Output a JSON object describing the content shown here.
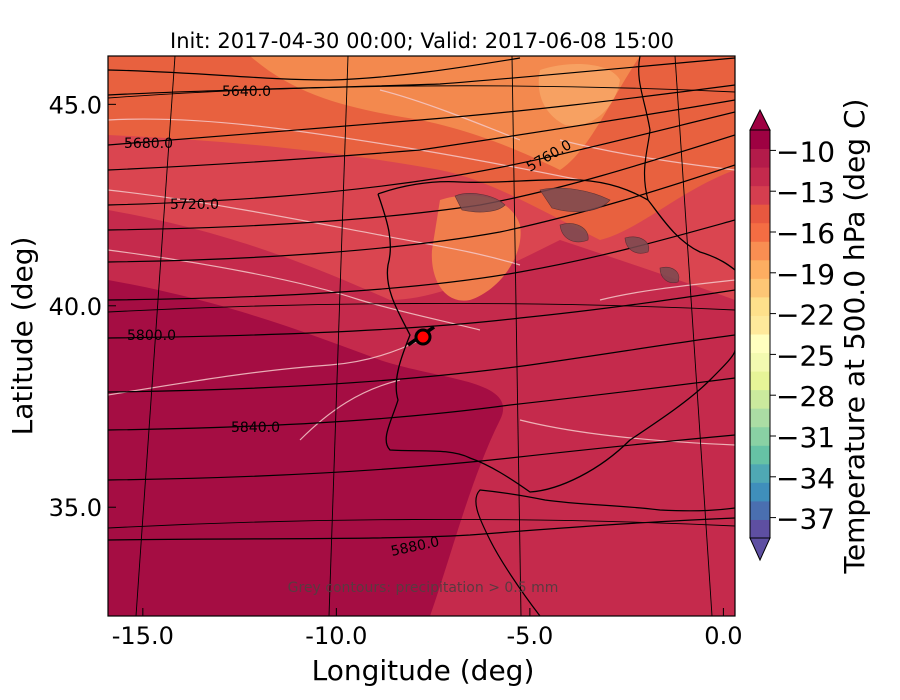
{
  "title": "Init: 2017-04-30 00:00; Valid: 2017-06-08 15:00",
  "xlabel": "Longitude (deg)",
  "ylabel": "Latitude (deg)",
  "x_ticks": [
    "-15.0",
    "-10.0",
    "-5.0",
    "0.0"
  ],
  "y_ticks": [
    "45.0",
    "40.0",
    "35.0"
  ],
  "x_tick_values": [
    -15,
    -10,
    -5,
    0
  ],
  "y_tick_values": [
    45,
    40,
    35
  ],
  "xlim": [
    -15.9,
    0.3
  ],
  "ylim": [
    32.3,
    46.2
  ],
  "annotation": "Grey contours: precipitation > 0.5 mm",
  "colorbar": {
    "label": "Temperature at 500.0 hPa (deg C)",
    "ticks": [
      "−10",
      "−13",
      "−16",
      "−19",
      "−22",
      "−25",
      "−28",
      "−31",
      "−34",
      "−37"
    ],
    "tick_values": [
      -10,
      -13,
      -16,
      -19,
      -22,
      -25,
      -28,
      -31,
      -34,
      -37
    ],
    "range": [
      -38.5,
      -8.5
    ],
    "extend": "both",
    "colors": [
      "#5e4fa2",
      "#4a6fb0",
      "#3f8fbb",
      "#4fa8b4",
      "#66c2a5",
      "#89d1a4",
      "#abdda4",
      "#cbea9d",
      "#e6f598",
      "#f3fab0",
      "#ffffbf",
      "#fee99b",
      "#fee08b",
      "#fdc675",
      "#fdae61",
      "#f98e52",
      "#f46d43",
      "#e8583f",
      "#d53e4f",
      "#c42a4d",
      "#b31b4a",
      "#9e0142"
    ]
  },
  "contour_labels": [
    {
      "text": "5640.0"
    },
    {
      "text": "5680.0"
    },
    {
      "text": "5720.0"
    },
    {
      "text": "5760.0"
    },
    {
      "text": "5800.0"
    },
    {
      "text": "5840.0"
    },
    {
      "text": "5880.0"
    }
  ],
  "marker": {
    "lon": -7.6,
    "lat": 39.3,
    "color": "#ff0000"
  },
  "chart_data": {
    "type": "heatmap",
    "title": "Init: 2017-04-30 00:00; Valid: 2017-06-08 15:00",
    "xlabel": "Longitude (deg)",
    "ylabel": "Latitude (deg)",
    "xlim": [
      -15.9,
      0.3
    ],
    "ylim": [
      32.3,
      46.2
    ],
    "colorbar_label": "Temperature at 500.0 hPa (deg C)",
    "colorbar_range": [
      -38.5,
      -8.5
    ],
    "geopotential_height_contours": [
      5640.0,
      5680.0,
      5720.0,
      5760.0,
      5800.0,
      5840.0,
      5880.0
    ]
  }
}
